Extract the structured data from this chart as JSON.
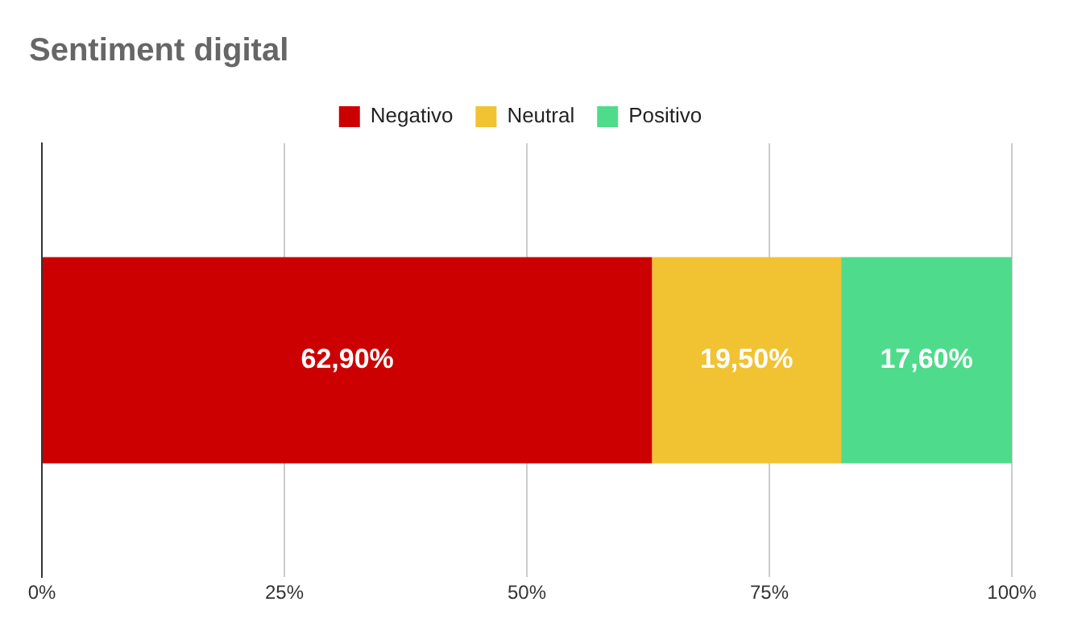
{
  "chart_data": {
    "type": "bar",
    "title": "Sentiment digital",
    "orientation": "horizontal",
    "stacked": true,
    "categories": [
      null
    ],
    "series": [
      {
        "name": "Negativo",
        "color": "#cc0000",
        "values": [
          62.9
        ],
        "value_labels": [
          "62,90%"
        ]
      },
      {
        "name": "Neutral",
        "color": "#f1c232",
        "values": [
          19.5
        ],
        "value_labels": [
          "19,50%"
        ]
      },
      {
        "name": "Positivo",
        "color": "#4fdb8c",
        "values": [
          17.6
        ],
        "value_labels": [
          "17,60%"
        ]
      }
    ],
    "xlim": [
      0,
      100
    ],
    "xticks": [
      {
        "value": 0,
        "label": "0%"
      },
      {
        "value": 25,
        "label": "25%"
      },
      {
        "value": 50,
        "label": "50%"
      },
      {
        "value": 75,
        "label": "75%"
      },
      {
        "value": 100,
        "label": "100%"
      }
    ],
    "grid": "x",
    "legend": "top"
  }
}
